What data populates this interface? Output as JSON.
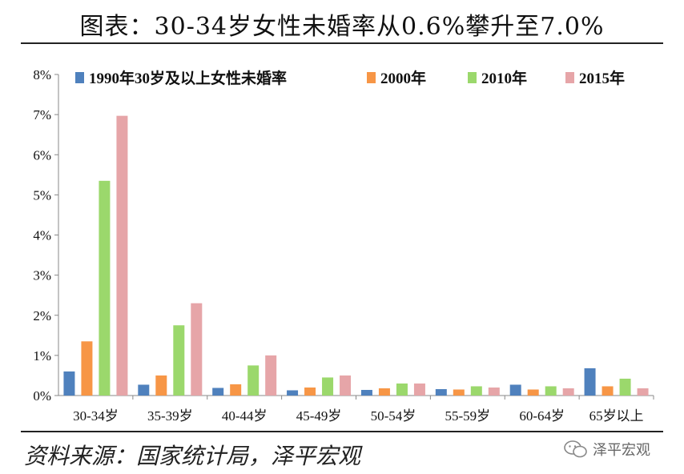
{
  "title": "图表：30-34岁女性未婚率从0.6%攀升至7.0%",
  "source": "资料来源：国家统计局，泽平宏观",
  "watermark": "泽平宏观",
  "chart_data": {
    "type": "bar",
    "categories": [
      "30-34岁",
      "35-39岁",
      "40-44岁",
      "45-49岁",
      "50-54岁",
      "55-59岁",
      "60-64岁",
      "65岁以上"
    ],
    "series": [
      {
        "name": "1990年30岁及以上女性未婚率",
        "color": "#4F81BD",
        "values": [
          0.6,
          0.27,
          0.19,
          0.13,
          0.14,
          0.16,
          0.27,
          0.68
        ]
      },
      {
        "name": "2000年",
        "color": "#F79646",
        "values": [
          1.35,
          0.5,
          0.28,
          0.2,
          0.18,
          0.15,
          0.15,
          0.23
        ]
      },
      {
        "name": "2010年",
        "color": "#9BD86C",
        "values": [
          5.35,
          1.75,
          0.75,
          0.45,
          0.3,
          0.23,
          0.23,
          0.42
        ]
      },
      {
        "name": "2015年",
        "color": "#E6A5A8",
        "values": [
          6.97,
          2.3,
          1.0,
          0.5,
          0.3,
          0.2,
          0.18,
          0.18
        ]
      }
    ],
    "yticks": [
      "0%",
      "1%",
      "2%",
      "3%",
      "4%",
      "5%",
      "6%",
      "7%",
      "8%"
    ],
    "ylim": [
      0,
      8
    ],
    "legend_position": "top",
    "grid": false
  }
}
